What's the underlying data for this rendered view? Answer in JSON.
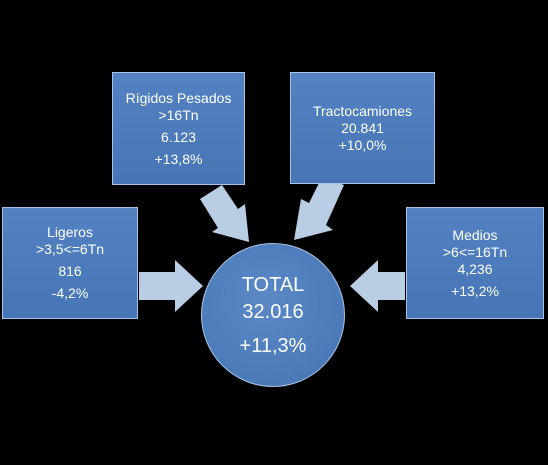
{
  "colors": {
    "background": "#000000",
    "box_fill": "#4a7bbb",
    "box_border": "#a9c3e6",
    "arrow_fill": "#b9cde5",
    "text": "#ffffff"
  },
  "total": {
    "label": "TOTAL",
    "value": "32.016",
    "change": "+11,3%"
  },
  "segments": {
    "rigidos": {
      "line1": "Rígidos Pesados",
      "line2": ">16Tn",
      "value": "6.123",
      "change": "+13,8%"
    },
    "tractocamiones": {
      "line1": "Tractocamiones",
      "value": "20.841",
      "change": "+10,0%"
    },
    "ligeros": {
      "line1": "Ligeros",
      "line2": ">3,5<=6Tn",
      "value": "816",
      "change": "-4,2%"
    },
    "medios": {
      "line1": "Medios",
      "line2": ">6<=16Tn",
      "value": "4,236",
      "change": "+13,2%"
    }
  }
}
